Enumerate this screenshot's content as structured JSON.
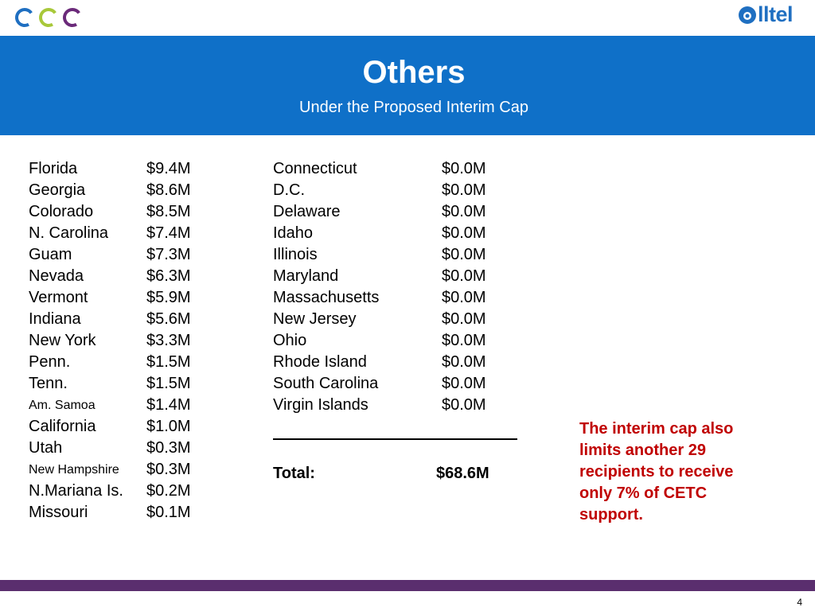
{
  "header": {
    "brand_name": "lltel",
    "title": "Others",
    "subtitle": "Under the Proposed Interim Cap"
  },
  "left_column": [
    {
      "name": "Florida",
      "value": "$9.4M"
    },
    {
      "name": "Georgia",
      "value": "$8.6M"
    },
    {
      "name": "Colorado",
      "value": "$8.5M"
    },
    {
      "name": "N. Carolina",
      "value": "$7.4M"
    },
    {
      "name": "Guam",
      "value": "$7.3M"
    },
    {
      "name": "Nevada",
      "value": "$6.3M"
    },
    {
      "name": "Vermont",
      "value": "$5.9M"
    },
    {
      "name": "Indiana",
      "value": "$5.6M"
    },
    {
      "name": "New York",
      "value": "$3.3M"
    },
    {
      "name": "Penn.",
      "value": "$1.5M"
    },
    {
      "name": "Tenn.",
      "value": "$1.5M"
    },
    {
      "name": "Am. Samoa",
      "value": "$1.4M"
    },
    {
      "name": "California",
      "value": "$1.0M"
    },
    {
      "name": "Utah",
      "value": "$0.3M"
    },
    {
      "name": "New Hampshire",
      "value": "$0.3M"
    },
    {
      "name": "N.Mariana Is.",
      "value": "$0.2M"
    },
    {
      "name": "Missouri",
      "value": "$0.1M"
    }
  ],
  "right_column": [
    {
      "name": "Connecticut",
      "value": "$0.0M"
    },
    {
      "name": "D.C.",
      "value": "$0.0M"
    },
    {
      "name": "Delaware",
      "value": "$0.0M"
    },
    {
      "name": "Idaho",
      "value": "$0.0M"
    },
    {
      "name": "Illinois",
      "value": "$0.0M"
    },
    {
      "name": "Maryland",
      "value": "$0.0M"
    },
    {
      "name": "Massachusetts",
      "value": "$0.0M"
    },
    {
      "name": "New Jersey",
      "value": "$0.0M"
    },
    {
      "name": "Ohio",
      "value": "$0.0M"
    },
    {
      "name": "Rhode Island",
      "value": "$0.0M"
    },
    {
      "name": "South Carolina",
      "value": "$0.0M"
    },
    {
      "name": "Virgin Islands",
      "value": "$0.0M"
    }
  ],
  "total": {
    "label": "Total:",
    "value": "$68.6M"
  },
  "note": "The interim cap also limits another 29 recipients to receive only 7% of CETC support.",
  "page_number": "4",
  "colors": {
    "banner": "#0f70c8",
    "footer": "#5a2e6e",
    "note": "#c00000",
    "brand": "#1f6fc1"
  }
}
